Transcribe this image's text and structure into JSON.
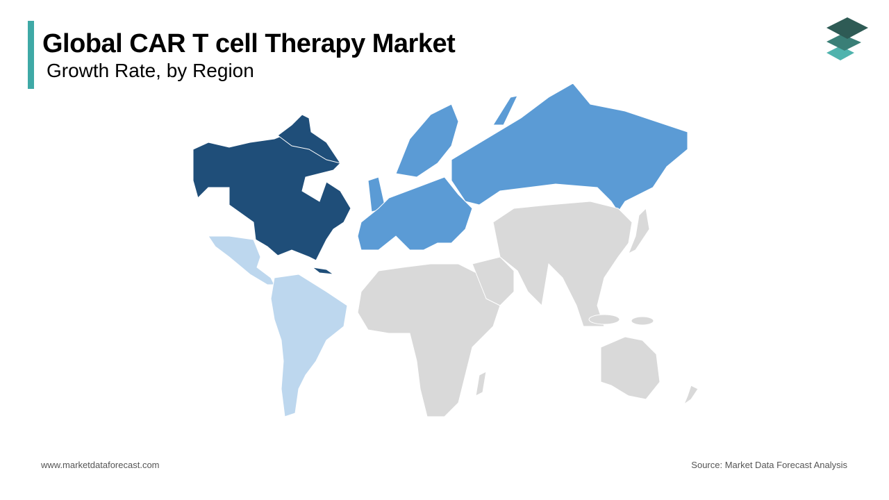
{
  "header": {
    "title": "Global CAR T cell Therapy Market",
    "subtitle": "Growth Rate, by Region"
  },
  "footer": {
    "website": "www.marketdataforecast.com",
    "source": "Source: Market Data Forecast Analysis"
  }
}
